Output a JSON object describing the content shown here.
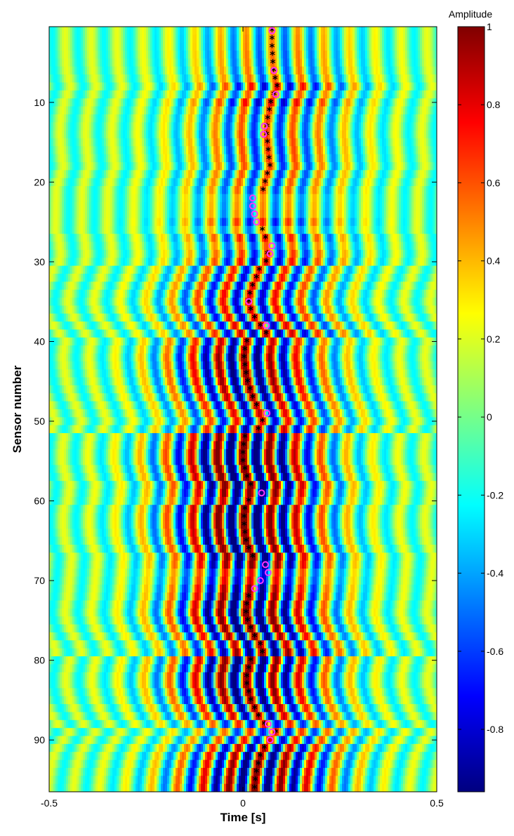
{
  "chart_data": {
    "type": "heatmap",
    "title": "",
    "xlabel": "Time [s]",
    "ylabel": "Sensor  number",
    "xlim": [
      -0.5,
      0.5
    ],
    "ylim": [
      1,
      96
    ],
    "y_reversed": true,
    "grid": false,
    "colormap": "jet",
    "x_ticks": [
      -0.5,
      0,
      0.5
    ],
    "x_tick_labels": [
      "-0.5",
      "0",
      "0.5"
    ],
    "y_ticks": [
      10,
      20,
      30,
      40,
      50,
      60,
      70,
      80,
      90
    ],
    "y_tick_labels": [
      "10",
      "20",
      "30",
      "40",
      "50",
      "60",
      "70",
      "80",
      "90"
    ],
    "colorbar": {
      "title": "Amplitude",
      "range": [
        -0.96,
        1
      ],
      "ticks": [
        1,
        0.8,
        0.6,
        0.4,
        0.2,
        0,
        -0.2,
        -0.4,
        -0.6,
        -0.8
      ],
      "tick_labels": [
        "1",
        "0.8",
        "0.6",
        "0.4",
        "0.2",
        "0",
        "-0.2",
        "-0.4",
        "-0.6",
        "-0.8"
      ]
    },
    "wavefield": {
      "frequency_hz": 15,
      "envelope_width_s": 0.15,
      "sensor_gain": [
        0.3,
        0.32,
        0.33,
        0.35,
        0.35,
        0.36,
        0.38,
        0.6,
        0.42,
        0.62,
        0.45,
        0.44,
        0.43,
        0.45,
        0.46,
        0.46,
        0.45,
        0.44,
        0.43,
        0.42,
        0.4,
        0.28,
        0.3,
        0.32,
        0.5,
        0.3,
        0.55,
        0.4,
        0.5,
        0.6,
        0.55,
        0.58,
        0.6,
        0.62,
        0.62,
        0.63,
        0.64,
        0.66,
        0.7,
        0.72,
        0.78,
        0.85,
        0.86,
        0.85,
        0.84,
        0.8,
        0.75,
        0.7,
        0.65,
        0.6,
        0.72,
        0.88,
        0.95,
        1.0,
        1.0,
        1.0,
        0.98,
        0.95,
        0.9,
        0.75,
        1.0,
        1.0,
        0.98,
        0.96,
        0.95,
        0.92,
        0.9,
        0.85,
        0.6,
        0.65,
        0.8,
        0.88,
        0.92,
        0.95,
        0.95,
        0.9,
        0.82,
        0.75,
        0.85,
        0.9,
        0.92,
        0.92,
        0.9,
        0.88,
        0.82,
        0.75,
        0.7,
        0.55,
        0.5,
        0.6,
        0.75,
        0.82,
        0.86,
        0.88,
        0.9,
        0.92
      ]
    },
    "picks": {
      "star": [
        {
          "sensor": 1,
          "time": 0.075
        },
        {
          "sensor": 2,
          "time": 0.075
        },
        {
          "sensor": 3,
          "time": 0.075
        },
        {
          "sensor": 4,
          "time": 0.076
        },
        {
          "sensor": 5,
          "time": 0.077
        },
        {
          "sensor": 6,
          "time": 0.079
        },
        {
          "sensor": 7,
          "time": 0.083
        },
        {
          "sensor": 8,
          "time": 0.088
        },
        {
          "sensor": 9,
          "time": 0.08
        },
        {
          "sensor": 10,
          "time": 0.072
        },
        {
          "sensor": 11,
          "time": 0.068
        },
        {
          "sensor": 12,
          "time": 0.064
        },
        {
          "sensor": 13,
          "time": 0.062
        },
        {
          "sensor": 14,
          "time": 0.061
        },
        {
          "sensor": 15,
          "time": 0.063
        },
        {
          "sensor": 16,
          "time": 0.065
        },
        {
          "sensor": 17,
          "time": 0.067
        },
        {
          "sensor": 18,
          "time": 0.07
        },
        {
          "sensor": 19,
          "time": 0.063
        },
        {
          "sensor": 20,
          "time": 0.057
        },
        {
          "sensor": 21,
          "time": 0.052
        },
        {
          "sensor": 26,
          "time": 0.05
        },
        {
          "sensor": 27,
          "time": 0.058
        },
        {
          "sensor": 29,
          "time": 0.063
        },
        {
          "sensor": 30,
          "time": 0.06
        },
        {
          "sensor": 31,
          "time": 0.042
        },
        {
          "sensor": 32,
          "time": 0.035
        },
        {
          "sensor": 33,
          "time": 0.025
        },
        {
          "sensor": 34,
          "time": 0.018
        },
        {
          "sensor": 35,
          "time": 0.015
        },
        {
          "sensor": 36,
          "time": 0.02
        },
        {
          "sensor": 37,
          "time": 0.03
        },
        {
          "sensor": 38,
          "time": 0.045
        },
        {
          "sensor": 39,
          "time": 0.06
        },
        {
          "sensor": 40,
          "time": 0.01
        },
        {
          "sensor": 41,
          "time": 0.005
        },
        {
          "sensor": 42,
          "time": 0.003
        },
        {
          "sensor": 43,
          "time": 0.005
        },
        {
          "sensor": 44,
          "time": 0.008
        },
        {
          "sensor": 45,
          "time": 0.012
        },
        {
          "sensor": 46,
          "time": 0.018
        },
        {
          "sensor": 47,
          "time": 0.025
        },
        {
          "sensor": 48,
          "time": 0.035
        },
        {
          "sensor": 50,
          "time": 0.05
        },
        {
          "sensor": 51,
          "time": 0.04
        },
        {
          "sensor": 52,
          "time": 0.005
        },
        {
          "sensor": 53,
          "time": 0.002
        },
        {
          "sensor": 54,
          "time": 0.0
        },
        {
          "sensor": 55,
          "time": 0.0
        },
        {
          "sensor": 56,
          "time": 0.005
        },
        {
          "sensor": 57,
          "time": 0.01
        },
        {
          "sensor": 58,
          "time": 0.02
        },
        {
          "sensor": 60,
          "time": 0.015
        },
        {
          "sensor": 61,
          "time": 0.005
        },
        {
          "sensor": 62,
          "time": 0.003
        },
        {
          "sensor": 63,
          "time": 0.003
        },
        {
          "sensor": 64,
          "time": 0.005
        },
        {
          "sensor": 65,
          "time": 0.008
        },
        {
          "sensor": 66,
          "time": 0.015
        },
        {
          "sensor": 67,
          "time": 0.025
        },
        {
          "sensor": 72,
          "time": 0.015
        },
        {
          "sensor": 73,
          "time": 0.01
        },
        {
          "sensor": 74,
          "time": 0.008
        },
        {
          "sensor": 75,
          "time": 0.012
        },
        {
          "sensor": 76,
          "time": 0.02
        },
        {
          "sensor": 77,
          "time": 0.03
        },
        {
          "sensor": 78,
          "time": 0.045
        },
        {
          "sensor": 79,
          "time": 0.05
        },
        {
          "sensor": 80,
          "time": 0.02
        },
        {
          "sensor": 81,
          "time": 0.015
        },
        {
          "sensor": 82,
          "time": 0.01
        },
        {
          "sensor": 83,
          "time": 0.01
        },
        {
          "sensor": 84,
          "time": 0.015
        },
        {
          "sensor": 85,
          "time": 0.02
        },
        {
          "sensor": 86,
          "time": 0.03
        },
        {
          "sensor": 87,
          "time": 0.04
        },
        {
          "sensor": 88,
          "time": 0.055
        },
        {
          "sensor": 89,
          "time": 0.085
        },
        {
          "sensor": 91,
          "time": 0.055
        },
        {
          "sensor": 92,
          "time": 0.045
        },
        {
          "sensor": 93,
          "time": 0.04
        },
        {
          "sensor": 94,
          "time": 0.035
        },
        {
          "sensor": 95,
          "time": 0.032
        },
        {
          "sensor": 96,
          "time": 0.03
        }
      ],
      "circle": [
        {
          "sensor": 1,
          "time": 0.075
        },
        {
          "sensor": 6,
          "time": 0.08
        },
        {
          "sensor": 9,
          "time": 0.085
        },
        {
          "sensor": 13,
          "time": 0.055
        },
        {
          "sensor": 14,
          "time": 0.053
        },
        {
          "sensor": 22,
          "time": 0.025
        },
        {
          "sensor": 23,
          "time": 0.025
        },
        {
          "sensor": 24,
          "time": 0.03
        },
        {
          "sensor": 25,
          "time": 0.035
        },
        {
          "sensor": 28,
          "time": 0.075
        },
        {
          "sensor": 29,
          "time": 0.07
        },
        {
          "sensor": 35,
          "time": 0.015
        },
        {
          "sensor": 38,
          "time": 0.06
        },
        {
          "sensor": 49,
          "time": 0.062
        },
        {
          "sensor": 59,
          "time": 0.048
        },
        {
          "sensor": 68,
          "time": 0.058
        },
        {
          "sensor": 69,
          "time": 0.065
        },
        {
          "sensor": 70,
          "time": 0.045
        },
        {
          "sensor": 71,
          "time": 0.03
        },
        {
          "sensor": 88,
          "time": 0.065
        },
        {
          "sensor": 89,
          "time": 0.075
        },
        {
          "sensor": 90,
          "time": 0.07
        }
      ]
    }
  }
}
